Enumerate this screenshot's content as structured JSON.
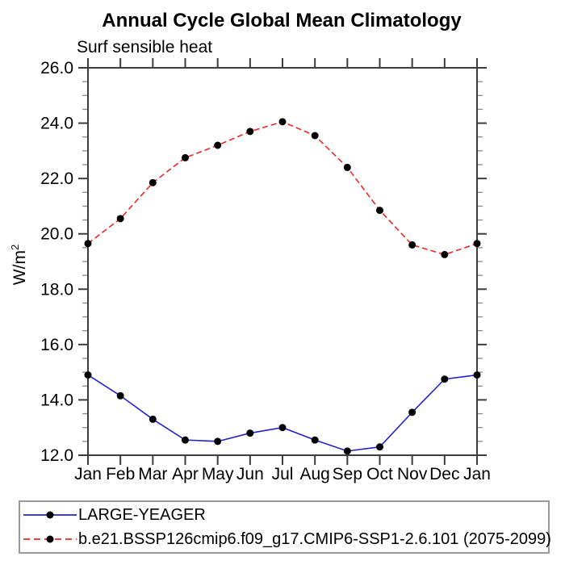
{
  "chart_data": {
    "type": "line",
    "title": "Annual Cycle Global Mean Climatology",
    "subtitle": "Surf sensible heat",
    "ylabel": "W/m²",
    "ylabel_base": "W/m",
    "ylabel_sup": "2",
    "categories": [
      "Jan",
      "Feb",
      "Mar",
      "Apr",
      "May",
      "Jun",
      "Jul",
      "Aug",
      "Sep",
      "Oct",
      "Nov",
      "Dec",
      "Jan"
    ],
    "ylim": [
      12.0,
      26.0
    ],
    "ytick_step": 2.0,
    "yminor_step": 0.5,
    "ytick_labels": [
      "12.0",
      "14.0",
      "16.0",
      "18.0",
      "20.0",
      "22.0",
      "24.0",
      "26.0"
    ],
    "grid": false,
    "legend_position": "bottom-left-box",
    "series": [
      {
        "name": "LARGE-YEAGER",
        "color": "#2222cc",
        "line_style": "solid",
        "marker": "filled-circle",
        "marker_color": "#000000",
        "values": [
          14.9,
          14.15,
          13.3,
          12.55,
          12.5,
          12.8,
          13.0,
          12.55,
          12.15,
          12.3,
          13.55,
          14.75,
          14.9
        ]
      },
      {
        "name": "b.e21.BSSP126cmip6.f09_g17.CMIP6-SSP1-2.6.101 (2075-2099)",
        "color": "#ee2626",
        "line_style": "dashed",
        "marker": "filled-circle",
        "marker_color": "#000000",
        "values": [
          19.65,
          20.55,
          21.85,
          22.75,
          23.2,
          23.7,
          24.05,
          23.55,
          22.4,
          20.85,
          19.6,
          19.25,
          19.65
        ]
      }
    ]
  }
}
